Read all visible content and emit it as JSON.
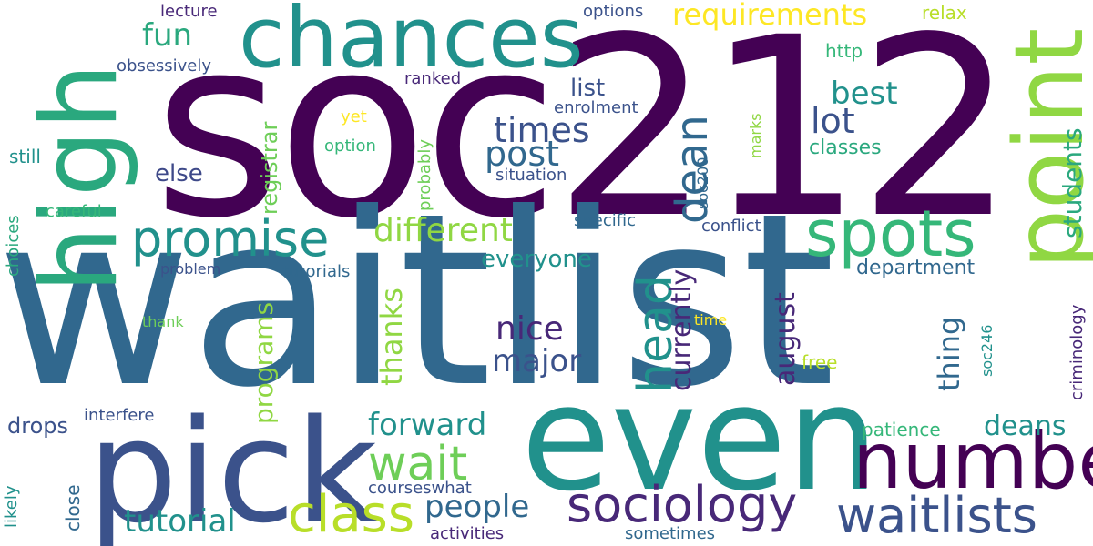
{
  "colors": {
    "background": "#ffffff",
    "dark_purple": "#440154",
    "indigo": "#3b528b",
    "blue": "#31688e",
    "teal": "#21918c",
    "green": "#35b779",
    "lime": "#90d743",
    "yellow": "#fde725"
  },
  "words": [
    {
      "text": "soc212"
    },
    {
      "text": "waitlist"
    },
    {
      "text": "even"
    },
    {
      "text": "pick"
    },
    {
      "text": "chances"
    },
    {
      "text": "high"
    },
    {
      "text": "point"
    },
    {
      "text": "number"
    },
    {
      "text": "spots"
    },
    {
      "text": "promise"
    },
    {
      "text": "class"
    },
    {
      "text": "sociology"
    },
    {
      "text": "waitlists"
    },
    {
      "text": "wait"
    },
    {
      "text": "requirements"
    },
    {
      "text": "fun"
    },
    {
      "text": "dean"
    },
    {
      "text": "head"
    },
    {
      "text": "times"
    },
    {
      "text": "post"
    },
    {
      "text": "best"
    },
    {
      "text": "lot"
    },
    {
      "text": "different"
    },
    {
      "text": "tutorial"
    },
    {
      "text": "people"
    },
    {
      "text": "forward"
    },
    {
      "text": "nice"
    },
    {
      "text": "major"
    },
    {
      "text": "currently"
    },
    {
      "text": "august"
    },
    {
      "text": "thing"
    },
    {
      "text": "students"
    },
    {
      "text": "deans"
    },
    {
      "text": "thanks"
    },
    {
      "text": "programs"
    },
    {
      "text": "registrar"
    },
    {
      "text": "list"
    },
    {
      "text": "everyone"
    },
    {
      "text": "else"
    },
    {
      "text": "drops"
    },
    {
      "text": "department"
    },
    {
      "text": "classes"
    },
    {
      "text": "lecture"
    },
    {
      "text": "options"
    },
    {
      "text": "relax"
    },
    {
      "text": "obsessively"
    },
    {
      "text": "ranked"
    },
    {
      "text": "http"
    },
    {
      "text": "enrolment"
    },
    {
      "text": "yet"
    },
    {
      "text": "option"
    },
    {
      "text": "probably"
    },
    {
      "text": "situation"
    },
    {
      "text": "marks"
    },
    {
      "text": "soc200"
    },
    {
      "text": "still"
    },
    {
      "text": "careful"
    },
    {
      "text": "choices"
    },
    {
      "text": "specific"
    },
    {
      "text": "conflict"
    },
    {
      "text": "problem"
    },
    {
      "text": "tutorials"
    },
    {
      "text": "thank"
    },
    {
      "text": "time"
    },
    {
      "text": "free"
    },
    {
      "text": "soc246"
    },
    {
      "text": "criminology"
    },
    {
      "text": "interfere"
    },
    {
      "text": "patience"
    },
    {
      "text": "likely"
    },
    {
      "text": "close"
    },
    {
      "text": "courseswhat"
    },
    {
      "text": "activities"
    },
    {
      "text": "sometimes"
    }
  ]
}
